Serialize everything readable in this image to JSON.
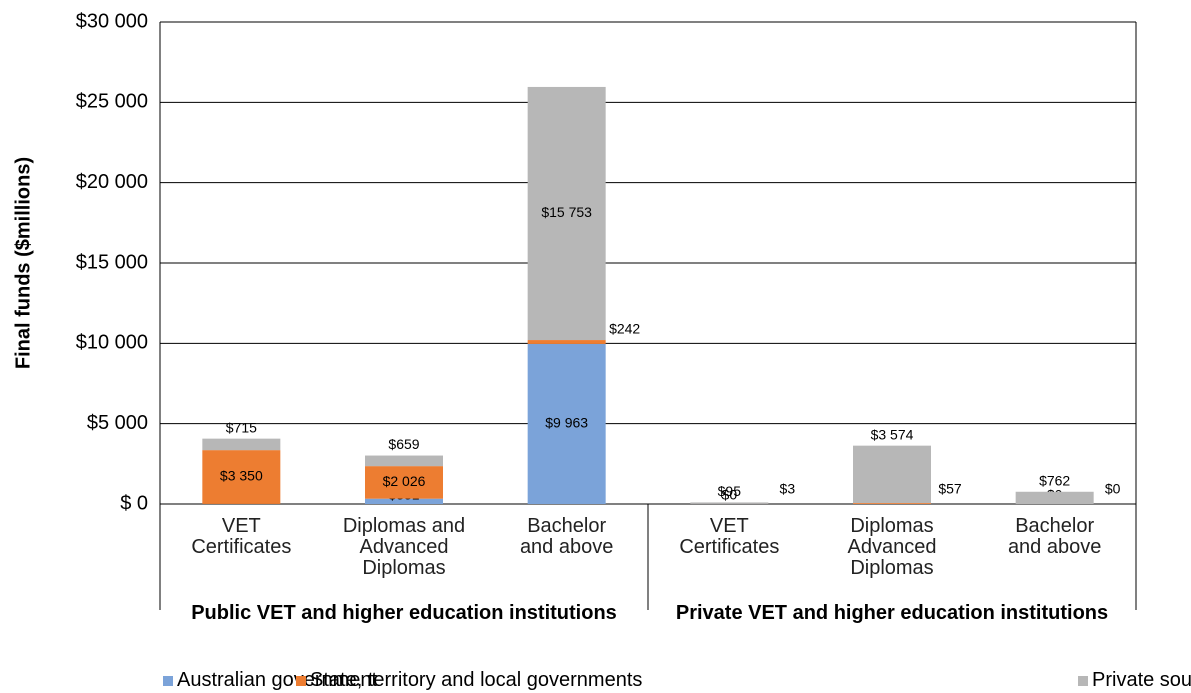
{
  "chart_data": {
    "type": "stacked_bar",
    "y_label": "Final funds ($millions)",
    "categories": [
      "VET\nCertificates",
      "Diplomas and\nAdvanced\nDiplomas",
      "Bachelor\nand above",
      "VET\nCertificates",
      "Diplomas\nAdvanced\nDiplomas",
      "Bachelor\nand above"
    ],
    "groups": [
      {
        "label": "Public VET and higher education institutions",
        "span": [
          0,
          3
        ]
      },
      {
        "label": "Private VET and higher education institutions",
        "span": [
          3,
          6
        ]
      }
    ],
    "series": [
      {
        "name": "Australian government",
        "color": "#7ba3d9",
        "values": [
          3,
          331,
          9963,
          0,
          0,
          0
        ],
        "value_labels": [
          "$3",
          "$331",
          "$9 963",
          "$0",
          "$0",
          "$0"
        ]
      },
      {
        "name": "State, territory and local governments",
        "color": "#ed7d31",
        "values": [
          3350,
          2026,
          242,
          3,
          57,
          0
        ],
        "value_labels": [
          "$3 350",
          "$2 026",
          "$242",
          "$3",
          "$57",
          "$0"
        ]
      },
      {
        "name": "Private sources",
        "color": "#b7b7b7",
        "values": [
          715,
          659,
          15753,
          95,
          3574,
          762
        ],
        "value_labels": [
          "$715",
          "$659",
          "$15 753",
          "$95",
          "$3 574",
          "$762"
        ]
      }
    ],
    "ylim": [
      0,
      30000
    ],
    "yticks": [
      {
        "value": 0,
        "label": "$ 0"
      },
      {
        "value": 5000,
        "label": "$5 000"
      },
      {
        "value": 10000,
        "label": "$10 000"
      },
      {
        "value": 15000,
        "label": "$15 000"
      },
      {
        "value": 20000,
        "label": "$20 000"
      },
      {
        "value": 25000,
        "label": "$25 000"
      },
      {
        "value": 30000,
        "label": "$30 000"
      }
    ],
    "grid": true
  }
}
